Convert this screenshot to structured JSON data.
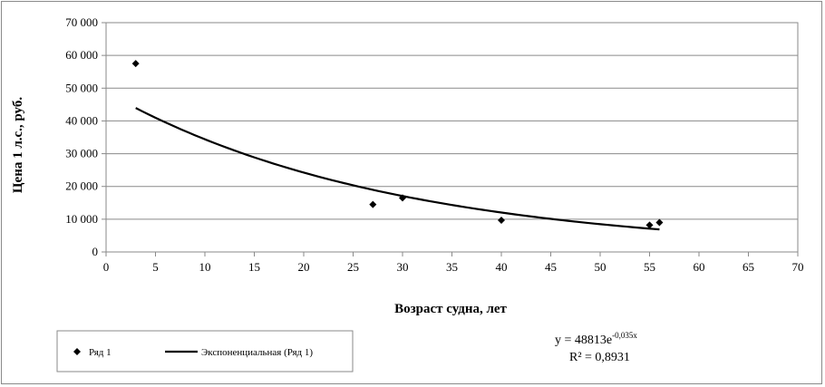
{
  "chart_data": {
    "type": "scatter",
    "xlabel": "Возраст судна, лет",
    "ylabel": "Цена 1 л.с., руб.",
    "xlim": [
      0,
      70
    ],
    "ylim": [
      0,
      70000
    ],
    "xticks": [
      "0",
      "5",
      "10",
      "15",
      "20",
      "25",
      "30",
      "35",
      "40",
      "45",
      "50",
      "55",
      "60",
      "65",
      "70"
    ],
    "yticks": [
      "0",
      "10 000",
      "20 000",
      "30 000",
      "40 000",
      "50 000",
      "60 000",
      "70 000"
    ],
    "grid": "horizontal",
    "series": [
      {
        "name": "Ряд 1",
        "marker": "diamond",
        "color": "#000000",
        "points": [
          {
            "x": 3,
            "y": 57500
          },
          {
            "x": 27,
            "y": 14500
          },
          {
            "x": 30,
            "y": 16500
          },
          {
            "x": 40,
            "y": 9700
          },
          {
            "x": 55,
            "y": 8200
          },
          {
            "x": 56,
            "y": 9000
          }
        ]
      }
    ],
    "trendline": {
      "name": "Экспоненциальная (Ряд 1)",
      "model": "exponential",
      "a": 48813,
      "b": -0.035,
      "x_from": 3,
      "x_to": 56,
      "color": "#000000"
    },
    "equation": {
      "prefix": "y = 48813e",
      "exponent": "-0,035x",
      "r2": "R² = 0,8931"
    },
    "legend": {
      "placement": "bottom-left",
      "entries": [
        "Ряд 1",
        "Экспоненциальная (Ряд 1)"
      ]
    }
  }
}
